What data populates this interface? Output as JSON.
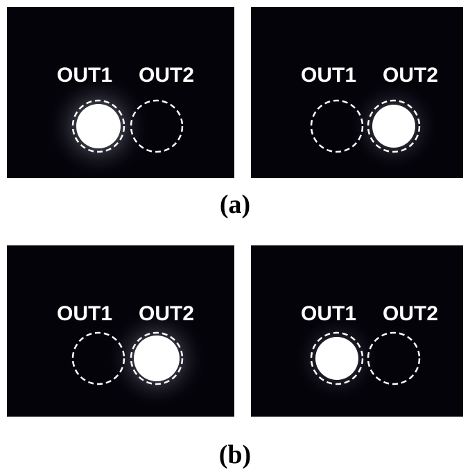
{
  "figure": {
    "caption_a": "(a)",
    "caption_b": "(b)",
    "panels": [
      {
        "id": "a-left",
        "labels": {
          "out1": "OUT1",
          "out2": "OUT2"
        },
        "bright_port": "OUT1"
      },
      {
        "id": "a-right",
        "labels": {
          "out1": "OUT1",
          "out2": "OUT2"
        },
        "bright_port": "OUT2"
      },
      {
        "id": "b-left",
        "labels": {
          "out1": "OUT1",
          "out2": "OUT2"
        },
        "bright_port": "OUT2"
      },
      {
        "id": "b-right",
        "labels": {
          "out1": "OUT1",
          "out2": "OUT2"
        },
        "bright_port": "OUT1"
      }
    ],
    "colors": {
      "background": "#05030a",
      "spot": "#ffffff",
      "dashed_circle": "#ffffff"
    }
  }
}
